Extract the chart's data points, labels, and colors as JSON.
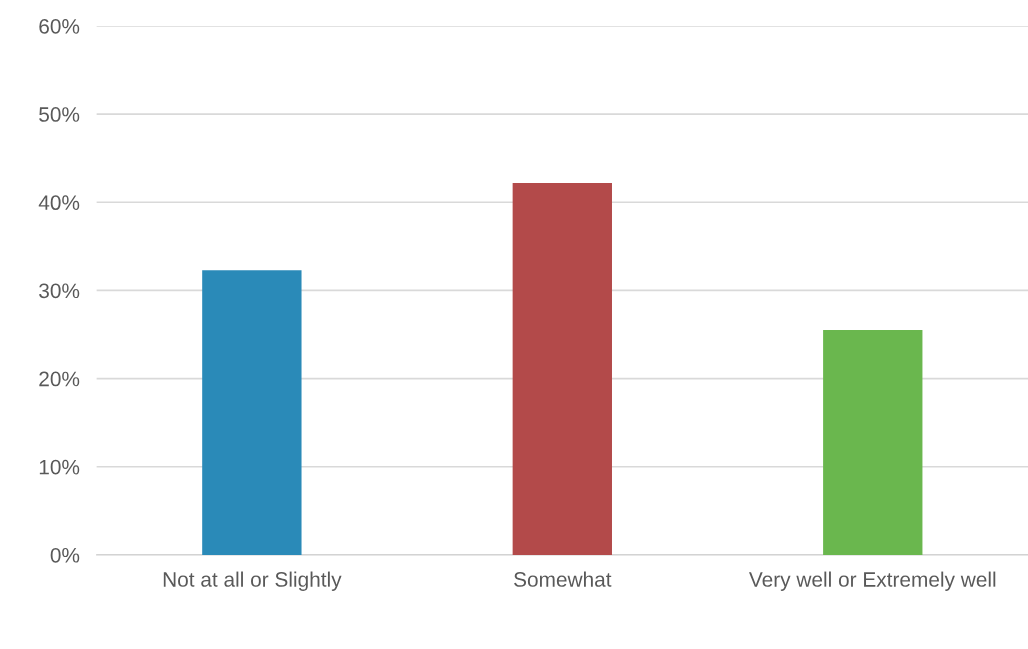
{
  "chart_data": {
    "type": "bar",
    "categories": [
      "Not at all or Slightly",
      "Somewhat",
      "Very well or Extremely well"
    ],
    "values": [
      32.3,
      42.2,
      25.5
    ],
    "colors": [
      "#2a8ab8",
      "#b34a4a",
      "#6ab74e"
    ],
    "ylim": [
      0,
      60
    ],
    "yticks": [
      {
        "value": 0,
        "label": "0%"
      },
      {
        "value": 10,
        "label": "10%"
      },
      {
        "value": 20,
        "label": "20%"
      },
      {
        "value": 30,
        "label": "30%"
      },
      {
        "value": 40,
        "label": "40%"
      },
      {
        "value": 50,
        "label": "50%"
      },
      {
        "value": 60,
        "label": "60%"
      }
    ],
    "grid": "y",
    "legend": false
  }
}
